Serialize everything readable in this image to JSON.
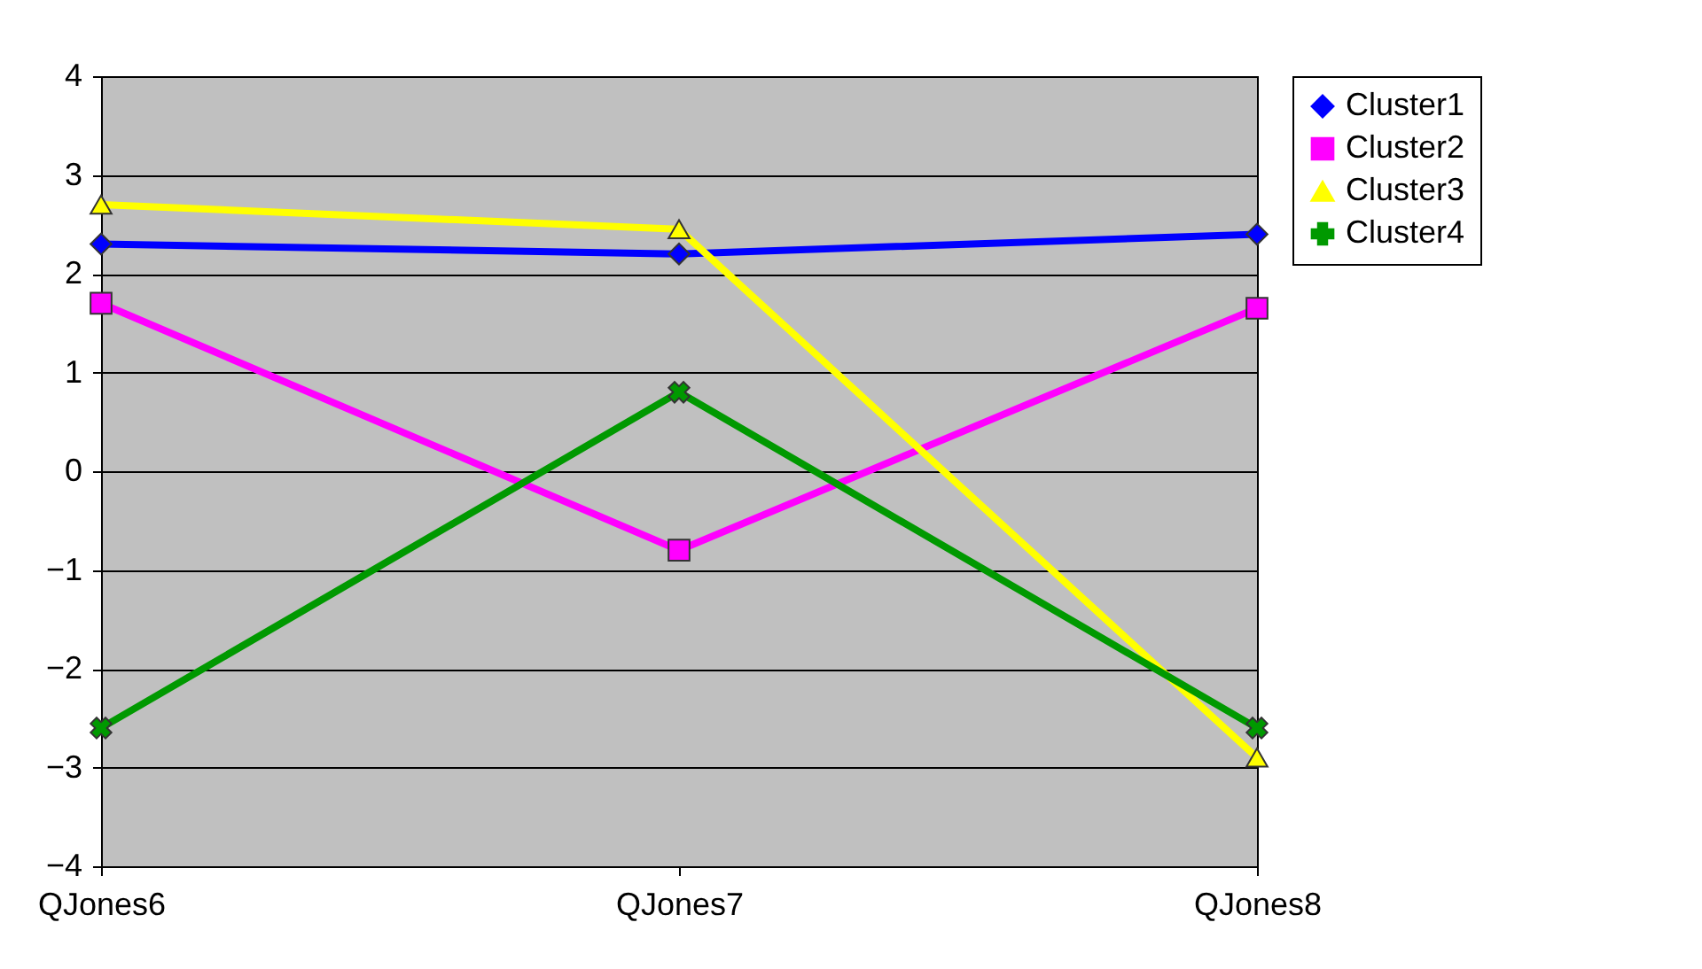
{
  "chart_data": {
    "type": "line",
    "categories": [
      "QJones6",
      "QJones7",
      "QJones8"
    ],
    "series": [
      {
        "name": "Cluster1",
        "color": "#0000ff",
        "marker": "diamond",
        "values": [
          2.3,
          2.2,
          2.4
        ]
      },
      {
        "name": "Cluster2",
        "color": "#ff00ff",
        "marker": "square",
        "values": [
          1.7,
          -0.8,
          1.65
        ]
      },
      {
        "name": "Cluster3",
        "color": "#ffff00",
        "marker": "triangle",
        "values": [
          2.7,
          2.45,
          -2.9
        ]
      },
      {
        "name": "Cluster4",
        "color": "#009900",
        "marker": "cross",
        "values": [
          -2.6,
          0.8,
          -2.6
        ]
      }
    ],
    "ylim": [
      -4,
      4
    ],
    "yticks": [
      -4,
      -3,
      -2,
      -1,
      0,
      1,
      2,
      3,
      4
    ],
    "grid": "y",
    "legend": "right"
  }
}
